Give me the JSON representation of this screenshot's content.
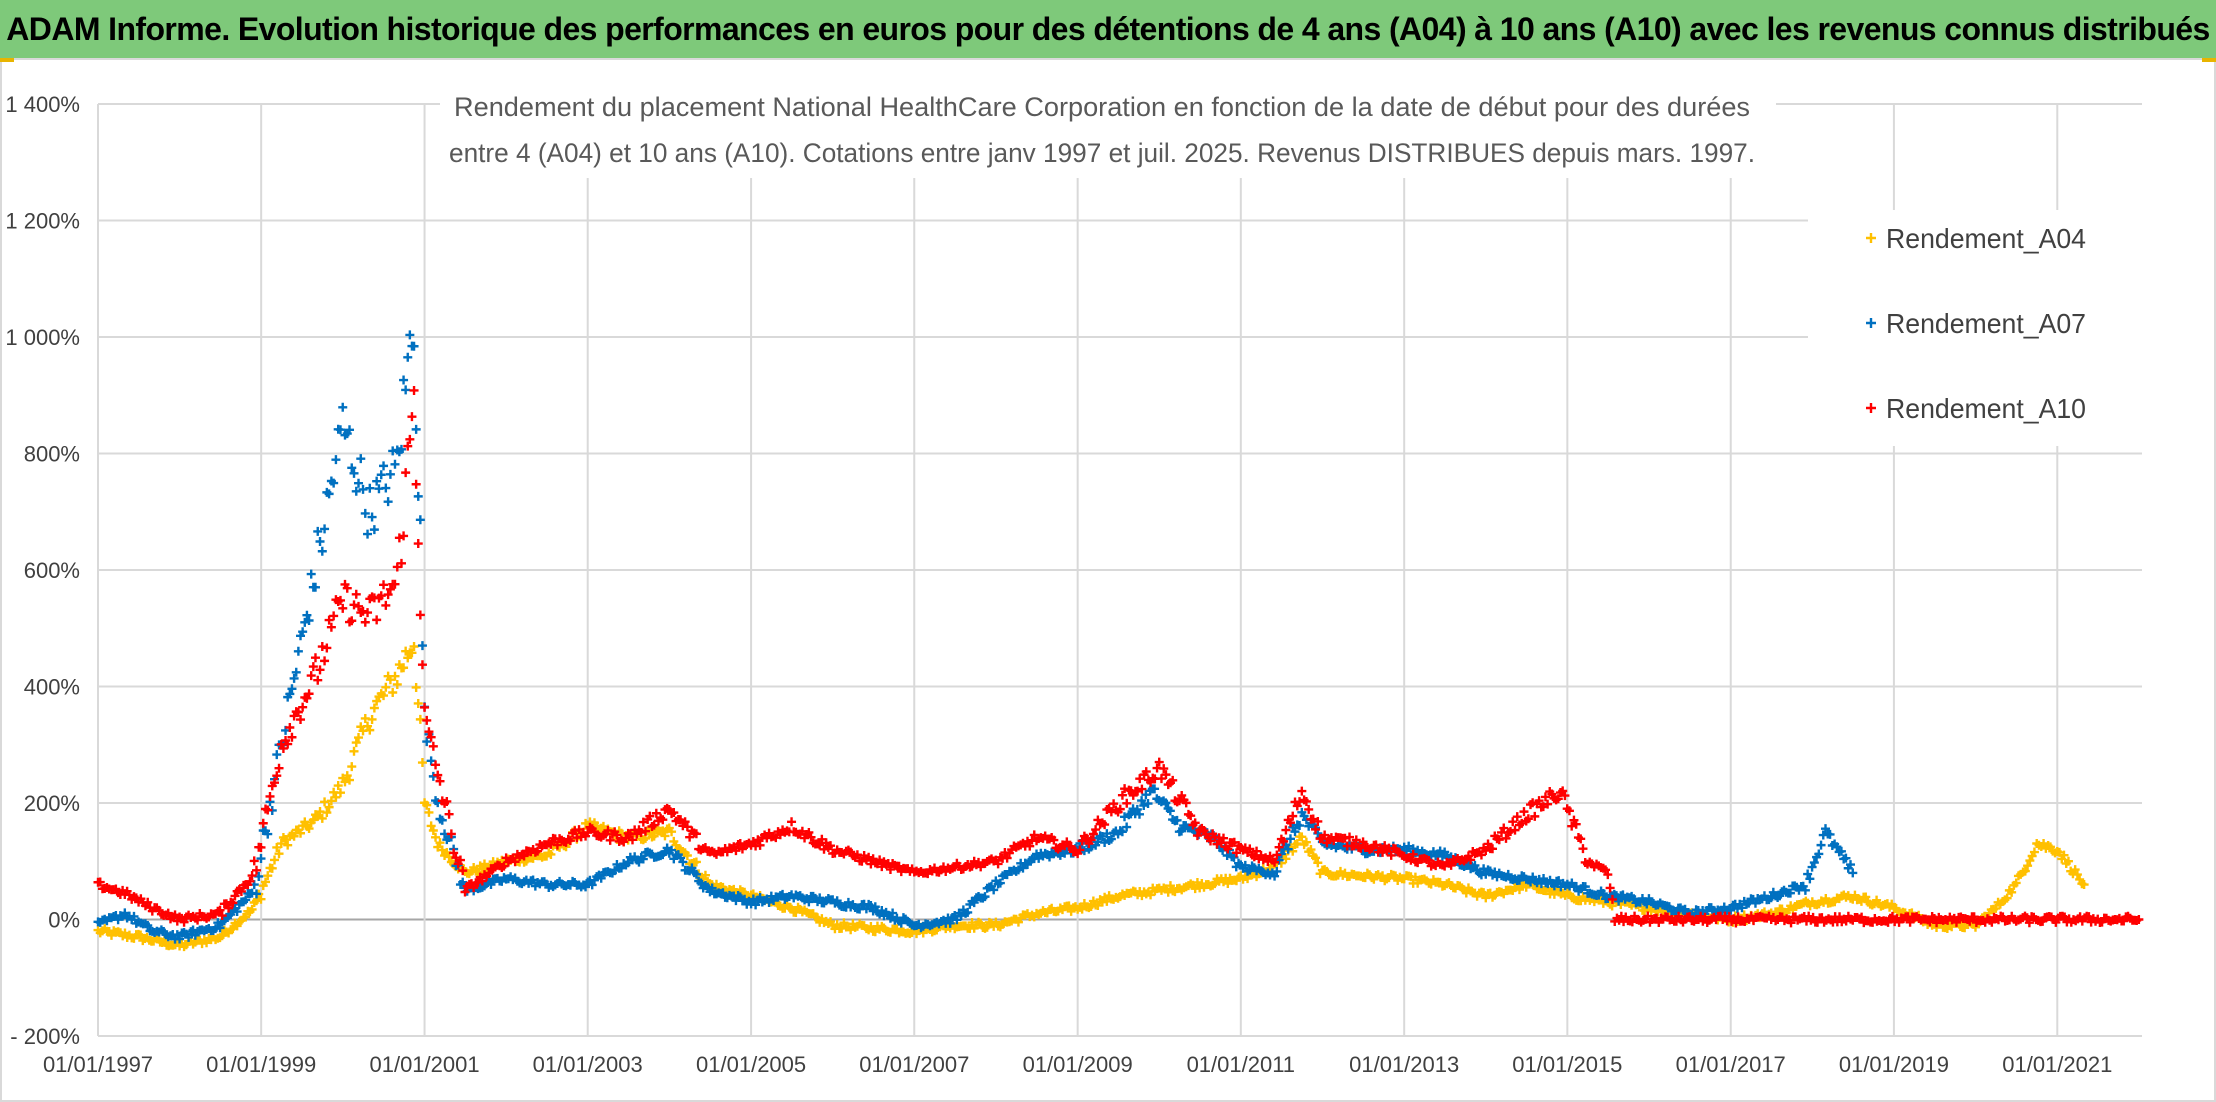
{
  "banner": {
    "title": "ADAM Informe. Evolution historique des performances en euros pour des détentions de 4 ans (A04) à 10 ans (A10) avec les revenus connus distribués"
  },
  "colors": {
    "banner_bg": "#7ec97a",
    "A04": "#ffc000",
    "A07": "#0070c0",
    "A10": "#ff0000",
    "grid": "#d9d9d9",
    "zero_line": "#a6a6a6"
  },
  "chart_data": {
    "type": "scatter",
    "title_lines": [
      "Rendement du placement National HealthCare Corporation en fonction de la date de début pour des durées",
      "entre 4 (A04) et 10 ans (A10). Cotations entre janv 1997 et juil. 2025. Revenus DISTRIBUES depuis mars. 1997."
    ],
    "xlabel": "",
    "ylabel": "",
    "x_ticks": [
      "01/01/1997",
      "01/01/1999",
      "01/01/2001",
      "01/01/2003",
      "01/01/2005",
      "01/01/2007",
      "01/01/2009",
      "01/01/2011",
      "01/01/2013",
      "01/01/2015",
      "01/01/2017",
      "01/01/2019",
      "01/01/2021"
    ],
    "y_ticks": [
      "- 200%",
      "0%",
      "200%",
      "400%",
      "600%",
      "800%",
      "1 000%",
      "1 200%",
      "1 400%"
    ],
    "y_tick_values": [
      -200,
      0,
      200,
      400,
      600,
      800,
      1000,
      1200,
      1400
    ],
    "xlim": [
      "1997-01-01",
      "2022-01-15"
    ],
    "ylim": [
      -200,
      1400
    ],
    "grid": true,
    "legend_position": "top-right",
    "marker": "+",
    "series": [
      {
        "name": "Rendement_A04",
        "key": "A04",
        "x": [
          "1997-01-01",
          "1997-07-01",
          "1998-01-01",
          "1998-07-01",
          "1998-12-01",
          "1999-04-01",
          "1999-09-01",
          "2000-01-01",
          "2000-05-01",
          "2000-09-01",
          "2000-11-15",
          "2001-01-01",
          "2001-03-01",
          "2001-07-01",
          "2002-01-01",
          "2002-07-01",
          "2003-01-01",
          "2003-07-01",
          "2004-01-01",
          "2004-07-01",
          "2005-01-01",
          "2005-07-01",
          "2006-01-01",
          "2006-07-01",
          "2007-01-01",
          "2007-07-01",
          "2008-01-01",
          "2008-07-01",
          "2009-01-01",
          "2009-07-01",
          "2010-01-01",
          "2010-07-01",
          "2011-01-01",
          "2011-06-01",
          "2011-10-01",
          "2012-01-01",
          "2012-07-01",
          "2013-01-01",
          "2013-07-01",
          "2014-01-01",
          "2014-07-01",
          "2015-01-01",
          "2015-07-01",
          "2016-01-01",
          "2016-07-01",
          "2017-01-01",
          "2017-07-01",
          "2018-01-01",
          "2018-07-01",
          "2019-01-01",
          "2019-07-01",
          "2020-01-01",
          "2020-04-01",
          "2020-07-01",
          "2020-10-01",
          "2021-01-01",
          "2021-05-01"
        ],
        "y": [
          -20,
          -30,
          -45,
          -30,
          20,
          130,
          170,
          230,
          350,
          420,
          480,
          200,
          130,
          80,
          100,
          110,
          160,
          140,
          150,
          60,
          40,
          20,
          -10,
          -15,
          -20,
          -10,
          -10,
          10,
          20,
          40,
          50,
          60,
          70,
          90,
          140,
          80,
          75,
          70,
          60,
          40,
          60,
          40,
          30,
          20,
          10,
          0,
          10,
          30,
          40,
          20,
          -10,
          -10,
          20,
          60,
          130,
          120,
          60
        ]
      },
      {
        "name": "Rendement_A07",
        "key": "A07",
        "x": [
          "1997-01-01",
          "1997-05-01",
          "1997-09-01",
          "1998-01-01",
          "1998-07-01",
          "1998-12-01",
          "1999-04-01",
          "1999-09-01",
          "2000-01-01",
          "2000-05-01",
          "2000-09-01",
          "2000-11-15",
          "2001-01-01",
          "2001-03-01",
          "2001-07-01",
          "2002-01-01",
          "2002-07-01",
          "2003-01-01",
          "2003-07-01",
          "2004-01-01",
          "2004-07-01",
          "2005-01-01",
          "2005-07-01",
          "2006-01-01",
          "2006-07-01",
          "2007-01-01",
          "2007-07-01",
          "2008-01-01",
          "2008-07-01",
          "2009-01-01",
          "2009-07-01",
          "2009-12-01",
          "2010-04-01",
          "2010-09-01",
          "2011-01-01",
          "2011-06-01",
          "2011-10-01",
          "2012-01-01",
          "2012-07-01",
          "2013-01-01",
          "2013-07-01",
          "2014-01-01",
          "2014-07-01",
          "2015-01-01",
          "2015-07-01",
          "2016-01-01",
          "2016-07-01",
          "2017-01-01",
          "2017-07-01",
          "2017-12-01",
          "2018-03-01",
          "2018-07-01"
        ],
        "y": [
          -10,
          10,
          -20,
          -30,
          -10,
          50,
          300,
          600,
          850,
          700,
          780,
          1050,
          350,
          200,
          50,
          70,
          60,
          60,
          100,
          120,
          50,
          30,
          40,
          30,
          20,
          -10,
          0,
          60,
          110,
          120,
          150,
          220,
          160,
          140,
          90,
          80,
          180,
          130,
          120,
          120,
          110,
          80,
          70,
          60,
          40,
          30,
          10,
          20,
          40,
          60,
          150,
          80
        ]
      },
      {
        "name": "Rendement_A10",
        "key": "A10",
        "x": [
          "1997-01-01",
          "1997-05-01",
          "1997-09-01",
          "1998-01-01",
          "1998-07-01",
          "1998-12-01",
          "1999-04-01",
          "1999-09-01",
          "2000-01-01",
          "2000-05-01",
          "2000-09-01",
          "2000-11-15",
          "2001-01-01",
          "2001-03-01",
          "2001-07-01",
          "2002-01-01",
          "2002-07-01",
          "2003-01-01",
          "2003-07-01",
          "2004-01-01",
          "2004-07-01",
          "2005-01-01",
          "2005-07-01",
          "2006-01-01",
          "2006-07-01",
          "2007-01-01",
          "2007-07-01",
          "2008-01-01",
          "2008-07-01",
          "2009-01-01",
          "2009-07-01",
          "2010-01-01",
          "2010-07-01",
          "2011-01-01",
          "2011-06-01",
          "2011-10-01",
          "2012-01-01",
          "2012-07-01",
          "2013-01-01",
          "2013-07-01",
          "2014-01-01",
          "2014-07-01",
          "2014-12-01",
          "2015-04-01",
          "2015-07-01",
          "2015-08-01",
          "2016-07-01",
          "2017-07-01",
          "2018-07-01",
          "2019-07-01",
          "2020-07-01",
          "2021-07-01",
          "2022-01-01"
        ],
        "y": [
          60,
          45,
          20,
          0,
          10,
          80,
          300,
          420,
          550,
          520,
          580,
          900,
          350,
          250,
          50,
          100,
          130,
          150,
          140,
          190,
          110,
          130,
          160,
          120,
          100,
          80,
          90,
          100,
          140,
          120,
          200,
          260,
          150,
          120,
          100,
          220,
          140,
          130,
          110,
          90,
          120,
          180,
          220,
          100,
          80,
          0,
          0,
          0,
          0,
          0,
          0,
          0,
          0
        ]
      }
    ]
  }
}
